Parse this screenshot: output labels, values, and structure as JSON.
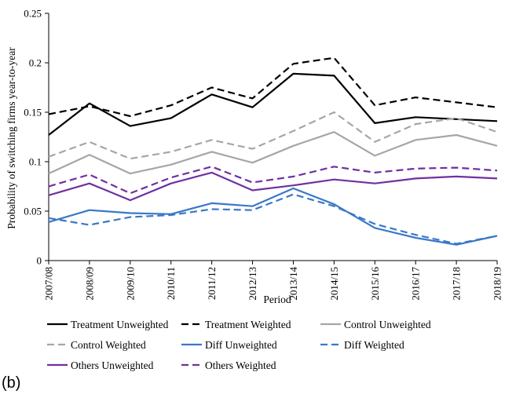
{
  "panel_label": "(b)",
  "chart_data": {
    "type": "line",
    "title": "",
    "xlabel": "Period",
    "ylabel": "Probability of switching firms year-to-year",
    "ylim": [
      0,
      0.25
    ],
    "yticks": [
      0,
      0.05,
      0.1,
      0.15,
      0.2,
      0.25
    ],
    "ytick_labels": [
      "0",
      "0.05",
      "0.1",
      "0.15",
      "0.2",
      "0.25"
    ],
    "grid": false,
    "legend_position": "bottom",
    "categories": [
      "2007/08",
      "2008/09",
      "2009/10",
      "2010/11",
      "2011/12",
      "2012/13",
      "2013/14",
      "2014/15",
      "2015/16",
      "2016/17",
      "2017/18",
      "2018/19"
    ],
    "series": [
      {
        "name": "Treatment Unweighted",
        "color": "#000000",
        "dash": "solid",
        "values": [
          0.127,
          0.159,
          0.136,
          0.144,
          0.168,
          0.155,
          0.189,
          0.187,
          0.139,
          0.145,
          0.143,
          0.141
        ]
      },
      {
        "name": "Treatment Weighted",
        "color": "#000000",
        "dash": "dashed",
        "values": [
          0.148,
          0.156,
          0.146,
          0.157,
          0.175,
          0.164,
          0.199,
          0.205,
          0.157,
          0.165,
          0.16,
          0.155
        ]
      },
      {
        "name": "Control Unweighted",
        "color": "#a6a6a6",
        "dash": "solid",
        "values": [
          0.088,
          0.107,
          0.088,
          0.097,
          0.11,
          0.099,
          0.116,
          0.13,
          0.106,
          0.122,
          0.127,
          0.116
        ]
      },
      {
        "name": "Control Weighted",
        "color": "#a6a6a6",
        "dash": "dashed",
        "values": [
          0.105,
          0.12,
          0.103,
          0.11,
          0.122,
          0.113,
          0.131,
          0.15,
          0.12,
          0.138,
          0.144,
          0.13
        ]
      },
      {
        "name": "Diff Unweighted",
        "color": "#3a78c9",
        "dash": "solid",
        "values": [
          0.039,
          0.051,
          0.048,
          0.047,
          0.058,
          0.055,
          0.073,
          0.057,
          0.033,
          0.023,
          0.016,
          0.025
        ]
      },
      {
        "name": "Diff Weighted",
        "color": "#3a78c9",
        "dash": "dashed",
        "values": [
          0.043,
          0.036,
          0.044,
          0.046,
          0.052,
          0.051,
          0.067,
          0.055,
          0.037,
          0.026,
          0.017,
          0.025
        ]
      },
      {
        "name": "Others Unweighted",
        "color": "#7030a0",
        "dash": "solid",
        "values": [
          0.066,
          0.078,
          0.061,
          0.078,
          0.089,
          0.071,
          0.076,
          0.082,
          0.078,
          0.083,
          0.085,
          0.083
        ]
      },
      {
        "name": "Others Weighted",
        "color": "#7030a0",
        "dash": "dashed",
        "values": [
          0.075,
          0.087,
          0.068,
          0.084,
          0.095,
          0.079,
          0.085,
          0.095,
          0.089,
          0.093,
          0.094,
          0.091
        ]
      }
    ]
  }
}
